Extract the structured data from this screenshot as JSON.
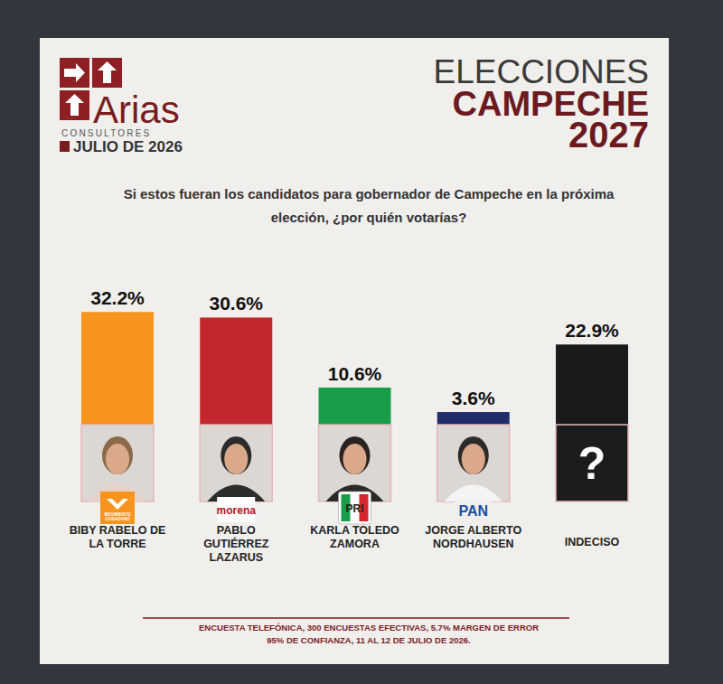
{
  "header": {
    "brand": "Arias",
    "brand_sub": "CONSULTORES",
    "date": "JULIO DE 2026",
    "title_lines": [
      "ELECCIONES",
      "CAMPECHE",
      "2027"
    ]
  },
  "chart_data": {
    "type": "bar",
    "title": "Si estos fueran los candidatos para gobernador de Campeche en la próxima elección, ¿por quién votarías?",
    "categories": [
      "BIBY RABELO DE LA TORRE",
      "PABLO GUTIÉRREZ LAZARUS",
      "KARLA TOLEDO ZAMORA",
      "JORGE ALBERTO NORDHAUSEN",
      "INDECISO"
    ],
    "values": [
      32.2,
      30.6,
      10.6,
      3.6,
      22.9
    ],
    "value_labels": [
      "32.2%",
      "30.6%",
      "10.6%",
      "3.6%",
      "22.9%"
    ],
    "colors": [
      "#f7941d",
      "#c1272d",
      "#1a9d48",
      "#1f2d6b",
      "#1a1a1a"
    ],
    "parties": [
      "MOVIMIENTO CIUDADANO",
      "morena",
      "PRI",
      "PAN",
      null
    ],
    "ylim": [
      0,
      40
    ],
    "data_labels": true,
    "tick_labels": false,
    "grid": false
  },
  "icons": {
    "undecided": "?"
  },
  "footer": {
    "lines": [
      "ENCUESTA TELEFÓNICA, 300 ENCUESTAS EFECTIVAS, 5.7% MARGEN DE ERROR",
      "95% DE CONFIANZA, 11 AL 12 DE JULIO DE 2026."
    ]
  }
}
